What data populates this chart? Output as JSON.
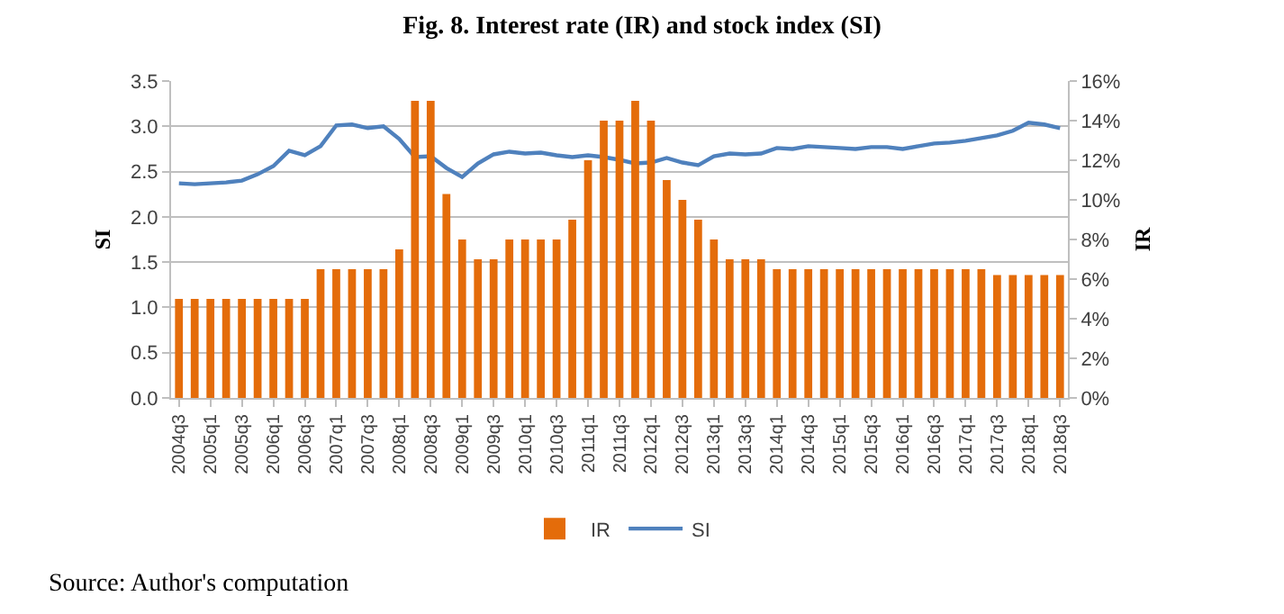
{
  "chart_data": {
    "type": "bar",
    "title": "Fig. 8. Interest rate (IR) and stock index (SI)",
    "ylabel": "SI",
    "y2label": "IR",
    "categories": [
      "2004q3",
      null,
      "2005q1",
      null,
      "2005q3",
      null,
      "2006q1",
      null,
      "2006q3",
      null,
      "2007q1",
      null,
      "2007q3",
      null,
      "2008q1",
      null,
      "2008q3",
      null,
      "2009q1",
      null,
      "2009q3",
      null,
      "2010q1",
      null,
      "2010q3",
      null,
      "2011q1",
      null,
      "2011q3",
      null,
      "2012q1",
      null,
      "2012q3",
      null,
      "2013q1",
      null,
      "2013q3",
      null,
      "2014q1",
      null,
      "2014q3",
      null,
      "2015q1",
      null,
      "2015q3",
      null,
      "2016q1",
      null,
      "2016q3",
      null,
      "2017q1",
      null,
      "2017q3",
      null,
      "2018q1",
      null,
      "2018q3"
    ],
    "series": [
      {
        "name": "IR",
        "axis": "y2",
        "color": "#e46c0a",
        "values": [
          5,
          5,
          5,
          5,
          5,
          5,
          5,
          5,
          5,
          6.5,
          6.5,
          6.5,
          6.5,
          6.5,
          7.5,
          15,
          15,
          10.3,
          8,
          7,
          7,
          8,
          8,
          8,
          8,
          9,
          12,
          14,
          14,
          15,
          14,
          11,
          10,
          9,
          8,
          7,
          7,
          7,
          6.5,
          6.5,
          6.5,
          6.5,
          6.5,
          6.5,
          6.5,
          6.5,
          6.5,
          6.5,
          6.5,
          6.5,
          6.5,
          6.5,
          6.2,
          6.2,
          6.2,
          6.2,
          6.2
        ]
      },
      {
        "name": "SI",
        "type": "line",
        "color": "#4f81bd",
        "values": [
          2.37,
          2.36,
          2.37,
          2.38,
          2.4,
          2.47,
          2.56,
          2.73,
          2.68,
          2.78,
          3.01,
          3.02,
          2.98,
          3.0,
          2.86,
          2.66,
          2.67,
          2.54,
          2.44,
          2.59,
          2.69,
          2.72,
          2.7,
          2.71,
          2.68,
          2.66,
          2.68,
          2.66,
          2.63,
          2.59,
          2.6,
          2.65,
          2.6,
          2.57,
          2.67,
          2.7,
          2.69,
          2.7,
          2.76,
          2.75,
          2.78,
          2.77,
          2.76,
          2.75,
          2.77,
          2.77,
          2.75,
          2.78,
          2.81,
          2.82,
          2.84,
          2.87,
          2.9,
          2.95,
          3.04,
          3.02,
          2.98
        ]
      }
    ],
    "ylim": [
      0,
      3.5
    ],
    "yticks": [
      {
        "value": 0,
        "label": "0.0"
      },
      {
        "value": 0.5,
        "label": "0.5"
      },
      {
        "value": 1,
        "label": "1.0"
      },
      {
        "value": 1.5,
        "label": "1.5"
      },
      {
        "value": 2,
        "label": "2.0"
      },
      {
        "value": 2.5,
        "label": "2.5"
      },
      {
        "value": 3,
        "label": "3.0"
      },
      {
        "value": 3.5,
        "label": "3.5"
      }
    ],
    "y2lim": [
      0,
      16
    ],
    "y2ticks": [
      {
        "value": 0,
        "label": "0%"
      },
      {
        "value": 2,
        "label": "2%"
      },
      {
        "value": 4,
        "label": "4%"
      },
      {
        "value": 6,
        "label": "6%"
      },
      {
        "value": 8,
        "label": "8%"
      },
      {
        "value": 10,
        "label": "10%"
      },
      {
        "value": 12,
        "label": "12%"
      },
      {
        "value": 14,
        "label": "14%"
      },
      {
        "value": 16,
        "label": "16%"
      }
    ],
    "grid": "y",
    "legend": "bottom",
    "marker": "none",
    "line_style": "solid",
    "annotations": [
      "Source: Author's computation"
    ]
  }
}
